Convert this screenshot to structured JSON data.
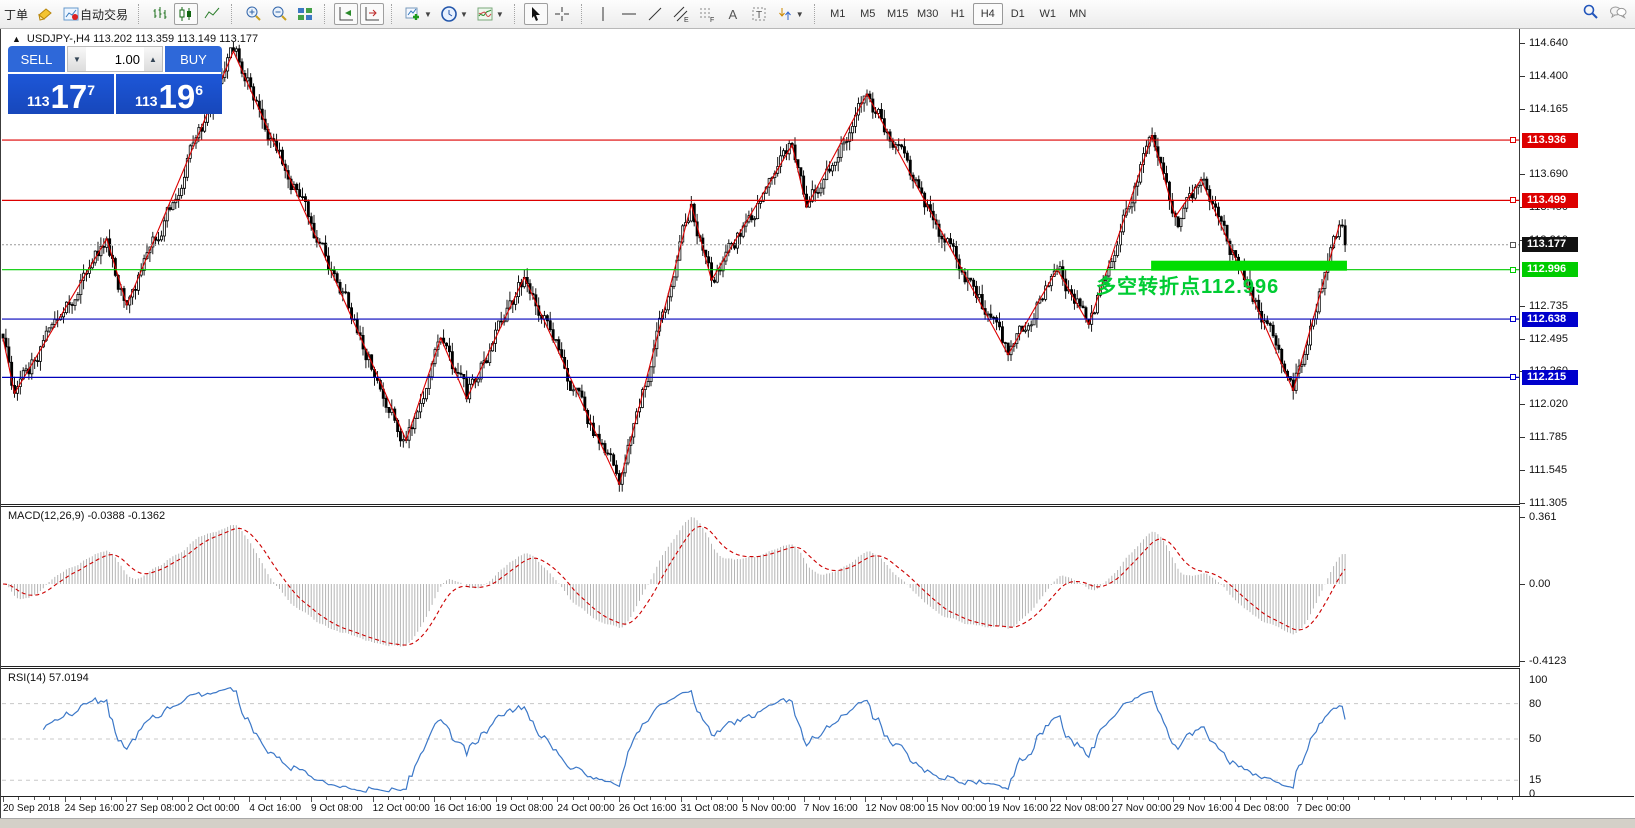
{
  "toolbar": {
    "order_label": "丁单",
    "autotrade_label": "自动交易",
    "channel_sub": "E",
    "fibo_sub": "F",
    "text_tool_label": "A",
    "label_tool_label": "T",
    "timeframes": [
      "M1",
      "M5",
      "M15",
      "M30",
      "H1",
      "H4",
      "D1",
      "W1",
      "MN"
    ],
    "active_timeframe": "H4"
  },
  "symbol_bar": {
    "collapse_icon": "▲",
    "text": "USDJPY-,H4  113.202 113.359 113.149 113.177"
  },
  "trade_panel": {
    "sell_label": "SELL",
    "buy_label": "BUY",
    "volume": "1.00",
    "sell_prefix": "113",
    "sell_big": "17",
    "sell_sup": "7",
    "buy_prefix": "113",
    "buy_big": "19",
    "buy_sup": "6"
  },
  "annotation": {
    "text": "多空转折点112.996",
    "color": "#00cc33"
  },
  "price_axis": {
    "ticks": [
      {
        "label": "114.640",
        "price": 114.64
      },
      {
        "label": "114.400",
        "price": 114.4
      },
      {
        "label": "114.165",
        "price": 114.165
      },
      {
        "label": "113.690",
        "price": 113.69
      },
      {
        "label": "113.450",
        "price": 113.45
      },
      {
        "label": "113.210",
        "price": 113.21
      },
      {
        "label": "112.735",
        "price": 112.735
      },
      {
        "label": "112.495",
        "price": 112.495
      },
      {
        "label": "112.260",
        "price": 112.26
      },
      {
        "label": "112.020",
        "price": 112.02
      },
      {
        "label": "111.785",
        "price": 111.785
      },
      {
        "label": "111.545",
        "price": 111.545
      },
      {
        "label": "111.305",
        "price": 111.305
      }
    ],
    "tags": [
      {
        "label": "113.936",
        "price": 113.936,
        "bg": "#dd0000",
        "fg": "#ffffff"
      },
      {
        "label": "113.499",
        "price": 113.499,
        "bg": "#dd0000",
        "fg": "#ffffff"
      },
      {
        "label": "113.177",
        "price": 113.177,
        "bg": "#111111",
        "fg": "#ffffff"
      },
      {
        "label": "112.996",
        "price": 112.996,
        "bg": "#00cc00",
        "fg": "#ffffff"
      },
      {
        "label": "112.638",
        "price": 112.638,
        "bg": "#0000cc",
        "fg": "#ffffff"
      },
      {
        "label": "112.215",
        "price": 112.215,
        "bg": "#0000cc",
        "fg": "#ffffff"
      }
    ]
  },
  "macd_pane": {
    "label": "MACD(12,26,9) -0.0388 -0.1362",
    "ticks": [
      {
        "label": "0.361",
        "v": 0.361
      },
      {
        "label": "0.00",
        "v": 0
      },
      {
        "label": "-0.4123",
        "v": -0.4123
      }
    ]
  },
  "rsi_pane": {
    "label": "RSI(14) 57.0194",
    "ticks": [
      {
        "label": "100",
        "v": 100
      },
      {
        "label": "80",
        "v": 80
      },
      {
        "label": "50",
        "v": 50
      },
      {
        "label": "15",
        "v": 15
      },
      {
        "label": "0",
        "v": 0
      }
    ],
    "levels": [
      80,
      50,
      15
    ]
  },
  "time_axis": {
    "labels": [
      "20 Sep 2018",
      "24 Sep 16:00",
      "27 Sep 08:00",
      "2 Oct 00:00",
      "4 Oct 16:00",
      "9 Oct 08:00",
      "12 Oct 00:00",
      "16 Oct 16:00",
      "19 Oct 08:00",
      "24 Oct 00:00",
      "26 Oct 16:00",
      "31 Oct 08:00",
      "5 Nov 00:00",
      "7 Nov 16:00",
      "12 Nov 08:00",
      "15 Nov 00:00",
      "19 Nov 16:00",
      "22 Nov 08:00",
      "27 Nov 00:00",
      "29 Nov 16:00",
      "4 Dec 08:00",
      "7 Dec 00:00"
    ]
  },
  "chart_data": {
    "type": "candlestick",
    "symbol": "USDJPY-",
    "timeframe": "H4",
    "last_ohlc": {
      "open": 113.202,
      "high": 113.359,
      "low": 113.149,
      "close": 113.177
    },
    "bars": 467,
    "zigzag_pivots": [
      [
        0,
        112.5
      ],
      [
        4,
        112.1
      ],
      [
        36,
        113.22
      ],
      [
        43,
        112.74
      ],
      [
        80,
        114.58
      ],
      [
        140,
        111.76
      ],
      [
        152,
        112.5
      ],
      [
        161,
        112.06
      ],
      [
        181,
        112.94
      ],
      [
        214,
        111.44
      ],
      [
        239,
        113.47
      ],
      [
        246,
        112.92
      ],
      [
        274,
        113.9
      ],
      [
        279,
        113.45
      ],
      [
        300,
        114.27
      ],
      [
        349,
        112.38
      ],
      [
        366,
        113.0
      ],
      [
        377,
        112.6
      ],
      [
        399,
        113.97
      ],
      [
        407,
        113.38
      ],
      [
        416,
        113.65
      ],
      [
        448,
        112.12
      ],
      [
        464,
        113.32
      ]
    ],
    "hlines": [
      {
        "price": 113.936,
        "color": "#dd0000"
      },
      {
        "price": 113.499,
        "color": "#dd0000"
      },
      {
        "price": 112.996,
        "color": "#00cc00"
      },
      {
        "price": 112.638,
        "color": "#0000bb"
      },
      {
        "price": 112.215,
        "color": "#0000bb"
      }
    ],
    "current_price": 113.177,
    "highlight_bar": {
      "price": 112.996,
      "x1_bar": 399,
      "x2_bar": 467,
      "color": "#00dd00"
    },
    "indicators": [
      {
        "name": "MACD",
        "params": [
          12,
          26,
          9
        ],
        "last_values": [
          -0.0388,
          -0.1362
        ]
      },
      {
        "name": "RSI",
        "params": [
          14
        ],
        "last_value": 57.0194
      }
    ]
  }
}
